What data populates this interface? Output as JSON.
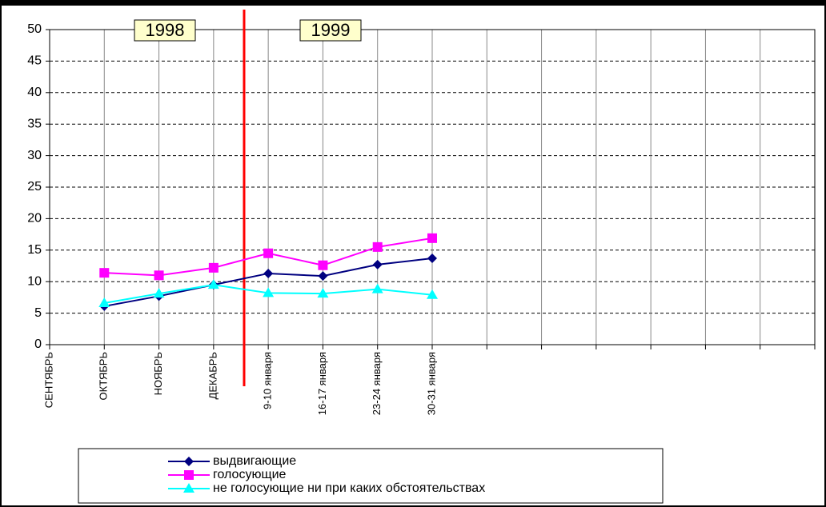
{
  "chart_data": {
    "type": "line",
    "annotations": [
      "1998",
      "1999"
    ],
    "categories": [
      "СЕНТЯБРЬ",
      "ОКТЯБРЬ",
      "НОЯБРЬ",
      "ДЕКАБРЬ",
      "9-10 января",
      "16-17 января",
      "23-24 января",
      "30-31 января",
      null,
      null,
      null,
      null,
      null,
      null,
      null
    ],
    "series": [
      {
        "name": "выдвигающие",
        "color": "#000080",
        "marker": "diamond",
        "values": [
          null,
          6.1,
          7.7,
          9.5,
          11.3,
          10.9,
          12.7,
          13.7,
          null,
          null,
          null,
          null,
          null,
          null,
          null
        ]
      },
      {
        "name": "голосующие",
        "color": "#ff00ff",
        "marker": "square",
        "values": [
          null,
          11.4,
          11.0,
          12.2,
          14.5,
          12.6,
          15.5,
          16.9,
          null,
          null,
          null,
          null,
          null,
          null,
          null
        ]
      },
      {
        "name": "не голосующие ни при каких обстоятельствах",
        "color": "#00ffff",
        "marker": "triangle",
        "values": [
          null,
          6.6,
          8.1,
          9.5,
          8.2,
          8.1,
          8.8,
          7.9,
          null,
          null,
          null,
          null,
          null,
          null,
          null
        ]
      }
    ],
    "ylim": [
      0,
      50
    ],
    "yticks": [
      0,
      5,
      10,
      15,
      20,
      25,
      30,
      35,
      40,
      45,
      50
    ],
    "grid": true
  }
}
